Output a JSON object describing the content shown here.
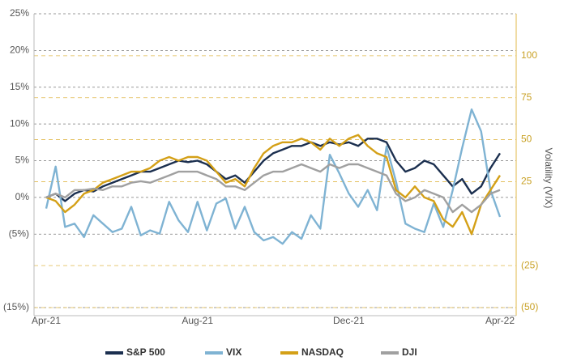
{
  "chart_data": {
    "type": "line",
    "y2_label": "Volatility (VIX)",
    "categories": [
      "Apr-21",
      null,
      null,
      null,
      null,
      null,
      null,
      null,
      null,
      null,
      null,
      null,
      null,
      null,
      null,
      null,
      "Aug-21",
      null,
      null,
      null,
      null,
      null,
      null,
      null,
      null,
      null,
      null,
      null,
      null,
      null,
      null,
      null,
      "Dec-21",
      null,
      null,
      null,
      null,
      null,
      null,
      null,
      null,
      null,
      null,
      null,
      null,
      null,
      null,
      null,
      "Apr-22"
    ],
    "ylim": [
      -15,
      25
    ],
    "yticks": [
      {
        "value": 25,
        "label": "25%"
      },
      {
        "value": 20,
        "label": "20%"
      },
      {
        "value": 15,
        "label": "15%"
      },
      {
        "value": 10,
        "label": "10%"
      },
      {
        "value": 5,
        "label": "5%"
      },
      {
        "value": 0,
        "label": "0%"
      },
      {
        "value": -5,
        "label": "(5%)"
      },
      {
        "value": -15,
        "label": "(15%)"
      }
    ],
    "y2lim": [
      -50,
      125
    ],
    "y2ticks": [
      100,
      75,
      50,
      25,
      {
        "value": -25,
        "label": "(25)"
      },
      {
        "value": -50,
        "label": "(50)"
      }
    ],
    "grid": true,
    "legend": "bottom",
    "series": [
      {
        "name": "S&P 500",
        "color": "#1b2f4f",
        "values": [
          0,
          0.5,
          -0.5,
          0.5,
          1,
          0.8,
          1.5,
          2,
          2.5,
          3,
          3.5,
          3.5,
          4,
          4.5,
          5,
          4.8,
          5,
          4.5,
          3.5,
          2.5,
          3,
          2,
          3.5,
          5,
          6,
          6.5,
          7,
          7,
          7.5,
          7,
          7.5,
          7.2,
          7.5,
          7,
          8,
          8,
          7.5,
          5,
          3.5,
          4,
          5,
          4.5,
          3,
          1.5,
          2.5,
          0.5,
          1.5,
          4,
          6
        ]
      },
      {
        "name": "VIX",
        "color": "#7fb3d3",
        "axis": "y2",
        "values": [
          9,
          34,
          -2,
          0,
          -8,
          5,
          0,
          -5,
          -3,
          10,
          -7,
          -4,
          -6,
          13,
          2,
          -5,
          13,
          -4,
          12,
          15,
          -3,
          10,
          -5,
          -10,
          -8,
          -12,
          -5,
          -9,
          5,
          -3,
          41,
          30,
          18,
          10,
          20,
          8,
          46,
          25,
          0,
          -3,
          -5,
          12,
          -2,
          20,
          45,
          68,
          55,
          20,
          4
        ]
      },
      {
        "name": "NASDAQ",
        "color": "#d4a017",
        "values": [
          0,
          -0.5,
          -2,
          -1,
          0.5,
          1,
          2,
          2.5,
          3,
          3.5,
          3.5,
          4,
          5,
          5.5,
          5,
          5.5,
          5.5,
          5,
          3.5,
          2,
          2.5,
          1.5,
          4,
          6,
          7,
          7.5,
          7.5,
          8,
          7.5,
          6.5,
          8,
          7,
          8,
          8.5,
          7,
          6,
          5.5,
          1,
          0,
          1.5,
          0,
          -0.5,
          -3,
          -4,
          -2,
          -5,
          -1,
          1,
          3
        ]
      },
      {
        "name": "DJI",
        "color": "#a0a0a0",
        "values": [
          0,
          0.5,
          0,
          1,
          1,
          1.2,
          1,
          1.5,
          1.5,
          2,
          2.2,
          2,
          2.5,
          3,
          3.5,
          3.5,
          3.5,
          3,
          2.5,
          1.5,
          1.5,
          1,
          2,
          3,
          3.5,
          3.5,
          4,
          4.5,
          4,
          3.5,
          4.5,
          4,
          4.5,
          4.5,
          4,
          3.5,
          3,
          0.5,
          -0.5,
          0,
          1,
          0.5,
          0,
          -2,
          -1,
          -2,
          -1,
          0.5,
          1
        ]
      }
    ]
  }
}
